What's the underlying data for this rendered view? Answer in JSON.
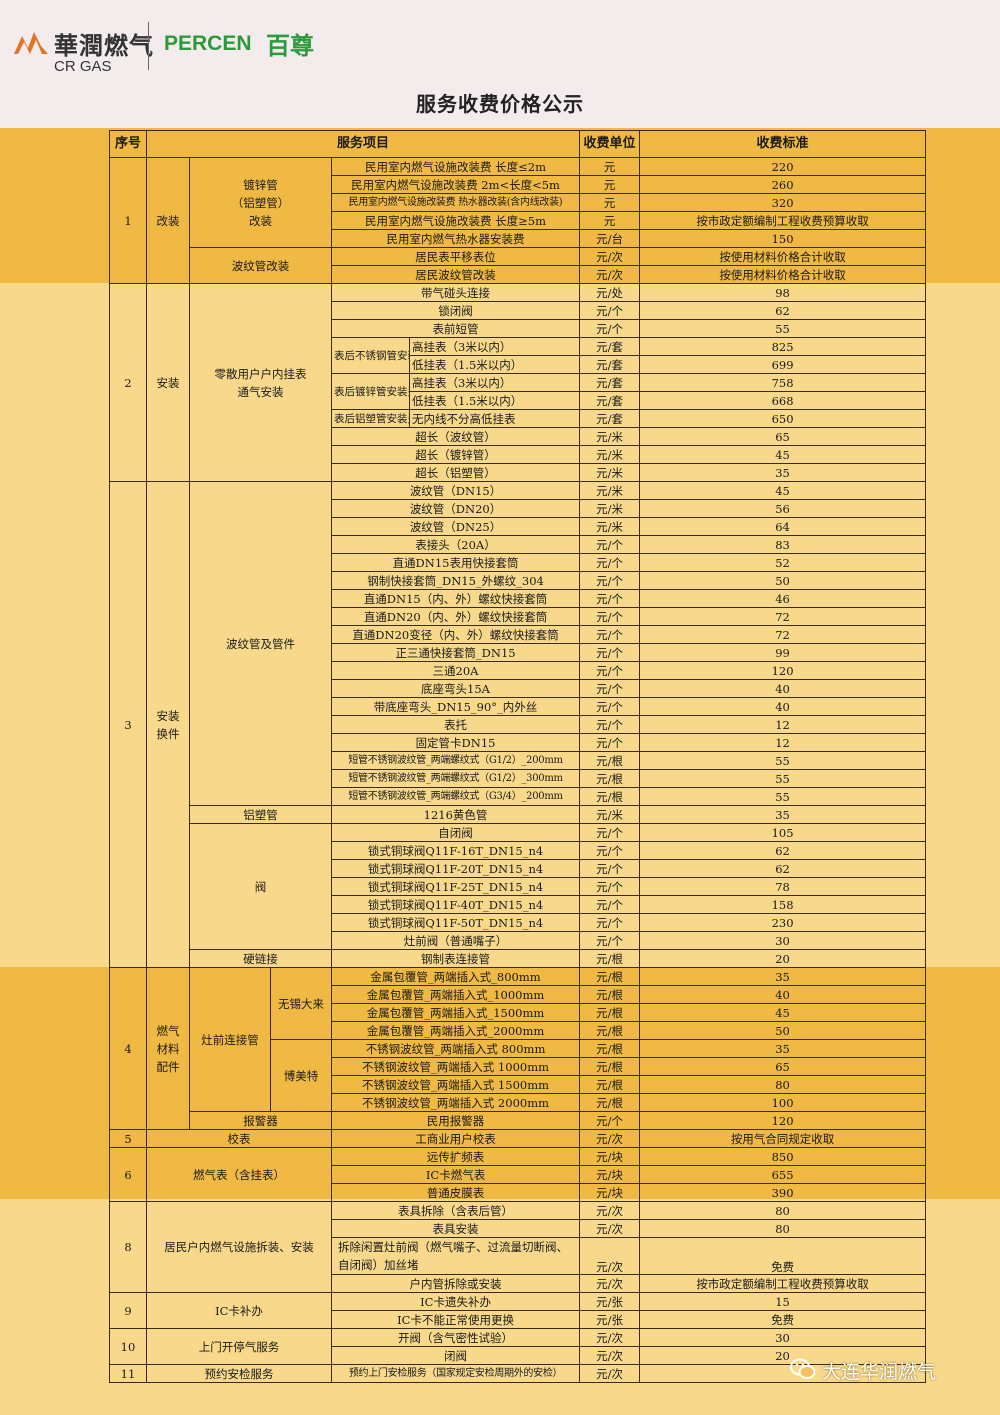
{
  "logo": {
    "company_cn": "華潤燃气",
    "company_en": "CR GAS",
    "partner_en": "PERCEN",
    "partner_cn": "百尊"
  },
  "title": "服务收费价格公示",
  "headers": {
    "seq": "序号",
    "item": "服务项目",
    "unit": "收费单位",
    "standard": "收费标准"
  },
  "groups": {
    "g1": {
      "seq": "1",
      "name": "改装",
      "sub_a": "镀锌管\n（铝塑管）\n改装",
      "sub_b": "波纹管改装"
    },
    "g2": {
      "seq": "2",
      "name": "安装",
      "sub": "零散用户户内挂表\n通气安装",
      "stainless": "表后不锈钢管安装费",
      "galv": "表后镀锌管安装费",
      "alu": "表后铝塑管安装费"
    },
    "g3": {
      "seq": "3",
      "name": "安装\n换件",
      "sub_a": "波纹管及管件",
      "sub_b": "铝塑管",
      "sub_c": "阀",
      "sub_d": "硬链接"
    },
    "g4": {
      "seq": "4",
      "name": "燃气\n材料\n配件",
      "sub_a": "灶前连接管",
      "brand_a": "无锡大来",
      "brand_b": "博美特",
      "sub_b": "报警器"
    },
    "g5": {
      "seq": "5",
      "name": "校表"
    },
    "g6": {
      "seq": "6",
      "name": "燃气表（含挂表）"
    },
    "g8": {
      "seq": "8",
      "name": "居民户内燃气设施拆装、安装"
    },
    "g9": {
      "seq": "9",
      "name": "IC卡补办"
    },
    "g10": {
      "seq": "10",
      "name": "上门开停气服务"
    },
    "g11": {
      "seq": "11",
      "name": "预约安检服务"
    }
  },
  "rows": [
    {
      "item": "民用室内燃气设施改装费  长度≤2m",
      "unit": "元",
      "price": "220"
    },
    {
      "item": "民用室内燃气设施改装费  2m<长度<5m",
      "unit": "元",
      "price": "260"
    },
    {
      "item": "民用室内燃气设施改装费 热水器改装(含内线改装)",
      "unit": "元",
      "price": "320"
    },
    {
      "item": "民用室内燃气设施改装费  长度≥5m",
      "unit": "元",
      "price": "按市政定额编制工程收费预算收取"
    },
    {
      "item": "民用室内燃气热水器安装费",
      "unit": "元/台",
      "price": "150"
    },
    {
      "item": "居民表平移表位",
      "unit": "元/次",
      "price": "按使用材料价格合计收取"
    },
    {
      "item": "居民波纹管改装",
      "unit": "元/次",
      "price": "按使用材料价格合计收取"
    },
    {
      "item": "带气碰头连接",
      "unit": "元/处",
      "price": "98"
    },
    {
      "item": "锁闭阀",
      "unit": "元/个",
      "price": "62"
    },
    {
      "item": "表前短管",
      "unit": "元/个",
      "price": "55"
    },
    {
      "item": "高挂表（3米以内）",
      "unit": "元/套",
      "price": "825"
    },
    {
      "item": "低挂表（1.5米以内）",
      "unit": "元/套",
      "price": "699"
    },
    {
      "item": "高挂表（3米以内）",
      "unit": "元/套",
      "price": "758"
    },
    {
      "item": "低挂表（1.5米以内）",
      "unit": "元/套",
      "price": "668"
    },
    {
      "item": "无内线不分高低挂表",
      "unit": "元/套",
      "price": "650"
    },
    {
      "item": "超长（波纹管）",
      "unit": "元/米",
      "price": "65"
    },
    {
      "item": "超长（镀锌管）",
      "unit": "元/米",
      "price": "45"
    },
    {
      "item": "超长（铝塑管）",
      "unit": "元/米",
      "price": "35"
    },
    {
      "item": "波纹管（DN15）",
      "unit": "元/米",
      "price": "45"
    },
    {
      "item": "波纹管（DN20）",
      "unit": "元/米",
      "price": "56"
    },
    {
      "item": "波纹管（DN25）",
      "unit": "元/米",
      "price": "64"
    },
    {
      "item": "表接头（20A）",
      "unit": "元/个",
      "price": "83"
    },
    {
      "item": "直通DN15表用快接套筒",
      "unit": "元/个",
      "price": "52"
    },
    {
      "item": "钢制快接套筒_DN15_外螺纹_304",
      "unit": "元/个",
      "price": "50"
    },
    {
      "item": "直通DN15（内、外）螺纹快接套筒",
      "unit": "元/个",
      "price": "46"
    },
    {
      "item": "直通DN20（内、外）螺纹快接套筒",
      "unit": "元/个",
      "price": "72"
    },
    {
      "item": "直通DN20变径（内、外）螺纹快接套筒",
      "unit": "元/个",
      "price": "72"
    },
    {
      "item": "正三通快接套筒_DN15",
      "unit": "元/个",
      "price": "99"
    },
    {
      "item": "三通20A",
      "unit": "元/个",
      "price": "120"
    },
    {
      "item": "底座弯头15A",
      "unit": "元/个",
      "price": "40"
    },
    {
      "item": "带底座弯头_DN15_90°_内外丝",
      "unit": "元/个",
      "price": "40"
    },
    {
      "item": "表托",
      "unit": "元/个",
      "price": "12"
    },
    {
      "item": "固定管卡DN15",
      "unit": "元/个",
      "price": "12"
    },
    {
      "item": "短管不锈钢波纹管_两端螺纹式（G1/2）_200mm",
      "unit": "元/根",
      "price": "55"
    },
    {
      "item": "短管不锈钢波纹管_两端螺纹式（G1/2）_300mm",
      "unit": "元/根",
      "price": "55"
    },
    {
      "item": "短管不锈钢波纹管_两端螺纹式（G3/4）_200mm",
      "unit": "元/根",
      "price": "55"
    },
    {
      "item": "1216黄色管",
      "unit": "元/米",
      "price": "35"
    },
    {
      "item": "自闭阀",
      "unit": "元/个",
      "price": "105"
    },
    {
      "item": "锁式铜球阀Q11F-16T_DN15_n4",
      "unit": "元/个",
      "price": "62"
    },
    {
      "item": "锁式铜球阀Q11F-20T_DN15_n4",
      "unit": "元/个",
      "price": "62"
    },
    {
      "item": "锁式铜球阀Q11F-25T_DN15_n4",
      "unit": "元/个",
      "price": "78"
    },
    {
      "item": "锁式铜球阀Q11F-40T_DN15_n4",
      "unit": "元/个",
      "price": "158"
    },
    {
      "item": "锁式铜球阀Q11F-50T_DN15_n4",
      "unit": "元/个",
      "price": "230"
    },
    {
      "item": "灶前阀（普通嘴子）",
      "unit": "元/个",
      "price": "30"
    },
    {
      "item": "钢制表连接管",
      "unit": "元/根",
      "price": "20"
    },
    {
      "item": "金属包覆管_两端插入式_800mm",
      "unit": "元/根",
      "price": "35"
    },
    {
      "item": "金属包覆管_两端插入式_1000mm",
      "unit": "元/根",
      "price": "40"
    },
    {
      "item": "金属包覆管_两端插入式_1500mm",
      "unit": "元/根",
      "price": "45"
    },
    {
      "item": "金属包覆管_两端插入式_2000mm",
      "unit": "元/根",
      "price": "50"
    },
    {
      "item": "不锈钢波纹管_两端插入式   800mm",
      "unit": "元/根",
      "price": "35"
    },
    {
      "item": "不锈钢波纹管_两端插入式   1000mm",
      "unit": "元/根",
      "price": "65"
    },
    {
      "item": "不锈钢波纹管_两端插入式   1500mm",
      "unit": "元/根",
      "price": "80"
    },
    {
      "item": "不锈钢波纹管_两端插入式   2000mm",
      "unit": "元/根",
      "price": "100"
    },
    {
      "item": "民用报警器",
      "unit": "元/个",
      "price": "120"
    },
    {
      "item": "工商业用户校表",
      "unit": "元/次",
      "price": "按用气合同规定收取"
    },
    {
      "item": "远传扩频表",
      "unit": "元/块",
      "price": "850"
    },
    {
      "item": "IC卡燃气表",
      "unit": "元/块",
      "price": "655"
    },
    {
      "item": "普通皮膜表",
      "unit": "元/块",
      "price": "390"
    },
    {
      "item": "表具拆除（含表后管）",
      "unit": "元/次",
      "price": "80"
    },
    {
      "item": "表具安装",
      "unit": "元/次",
      "price": "80"
    },
    {
      "item": "拆除闲置灶前阀（燃气嘴子、过流量切断阀、自闭阀）加丝堵",
      "unit": "元/次",
      "price": "免费"
    },
    {
      "item": "户内管拆除或安装",
      "unit": "元/次",
      "price": "按市政定额编制工程收费预算收取"
    },
    {
      "item": "IC卡遗失补办",
      "unit": "元/张",
      "price": "15"
    },
    {
      "item": "IC卡不能正常使用更换",
      "unit": "元/张",
      "price": "免费"
    },
    {
      "item": "开阀（含气密性试验）",
      "unit": "元/次",
      "price": "30"
    },
    {
      "item": "闭阀",
      "unit": "元/次",
      "price": "20"
    },
    {
      "item": "预约上门安检服务（国家规定安检周期外的安检）",
      "unit": "元/次",
      "price": ""
    }
  ],
  "watermark": "大连华润燃气"
}
